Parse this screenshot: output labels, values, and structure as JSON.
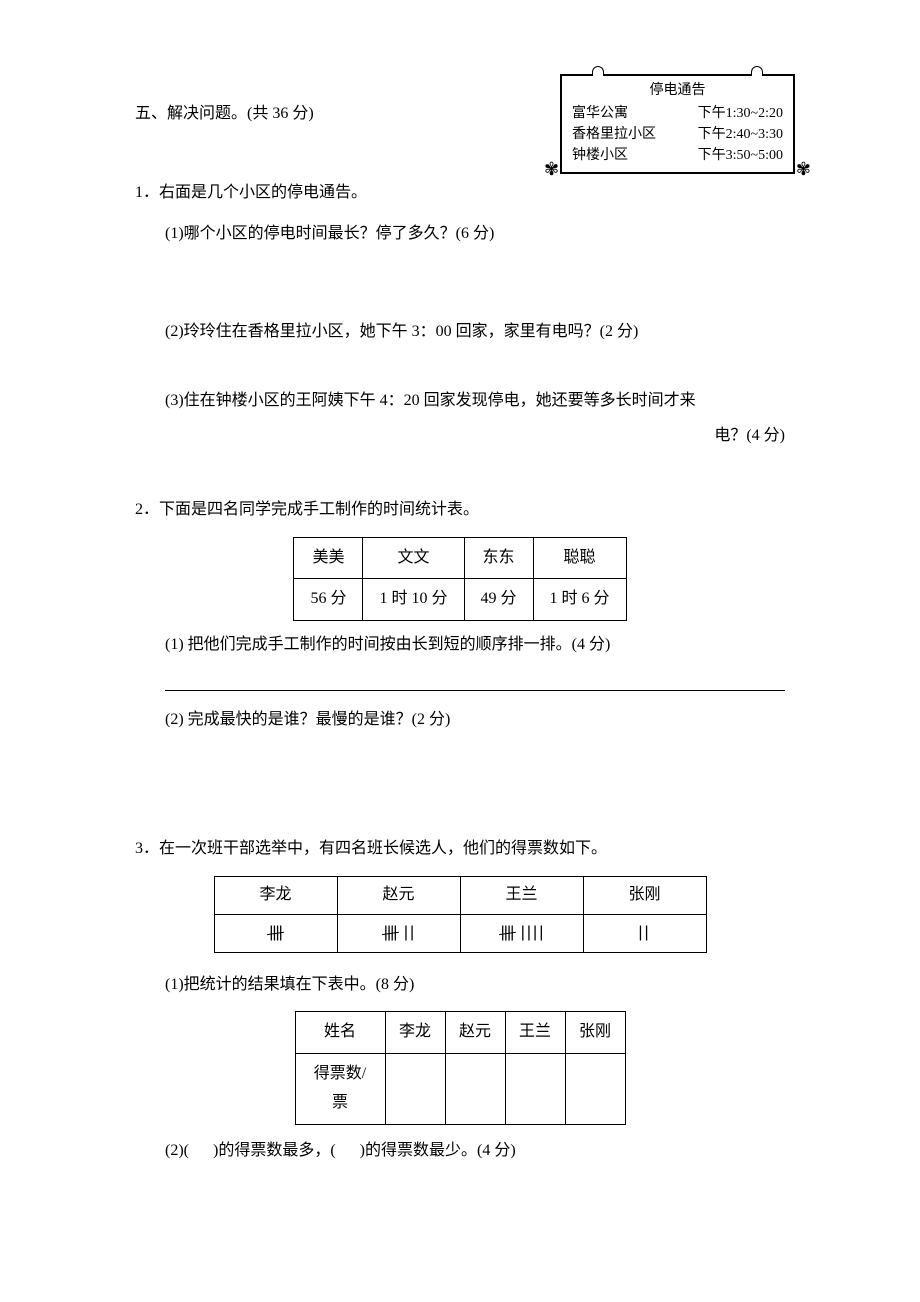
{
  "section": {
    "title": "五、解决问题。(共 36 分)"
  },
  "notice": {
    "title": "停电通告",
    "rows": [
      {
        "name": "富华公寓",
        "time": "下午1:30~2:20"
      },
      {
        "name": "香格里拉小区",
        "time": "下午2:40~3:30"
      },
      {
        "name": "钟楼小区",
        "time": "下午3:50~5:00"
      }
    ]
  },
  "q1": {
    "main": "1．右面是几个小区的停电通告。",
    "sub1": "(1)哪个小区的停电时间最长？停了多久？(6 分)",
    "sub2": "(2)玲玲住在香格里拉小区，她下午 3：00 回家，家里有电吗？(2 分)",
    "sub3a": "(3)住在钟楼小区的王阿姨下午 4：20 回家发现停电，她还要等多长时间才来",
    "sub3b": "电？(4 分)"
  },
  "q2": {
    "main": "2．下面是四名同学完成手工制作的时间统计表。",
    "table": {
      "headers": [
        "美美",
        "文文",
        "东东",
        "聪聪"
      ],
      "values": [
        "56 分",
        "1 时 10 分",
        "49 分",
        "1 时 6 分"
      ]
    },
    "sub1": "(1)  把他们完成手工制作的时间按由长到短的顺序排一排。(4 分)",
    "sub2": "(2)  完成最快的是谁？最慢的是谁？(2 分)"
  },
  "q3": {
    "main": "3．在一次班干部选举中，有四名班长候选人，他们的得票数如下。",
    "vote_table": {
      "names": [
        "李龙",
        "赵元",
        "王兰",
        "张刚"
      ],
      "tallies": [
        {
          "fives": 1,
          "ones": 0
        },
        {
          "fives": 1,
          "ones": 2
        },
        {
          "fives": 1,
          "ones": 4
        },
        {
          "fives": 0,
          "ones": 2
        }
      ]
    },
    "sub1": "(1)把统计的结果填在下表中。(8 分)",
    "result_table": {
      "header_name": "姓名",
      "header_votes": "得票数/票",
      "names": [
        "李龙",
        "赵元",
        "王兰",
        "张刚"
      ]
    },
    "sub2_a": "(2)(",
    "sub2_b": ")的得票数最多，(",
    "sub2_c": ")的得票数最少。(4 分)"
  }
}
